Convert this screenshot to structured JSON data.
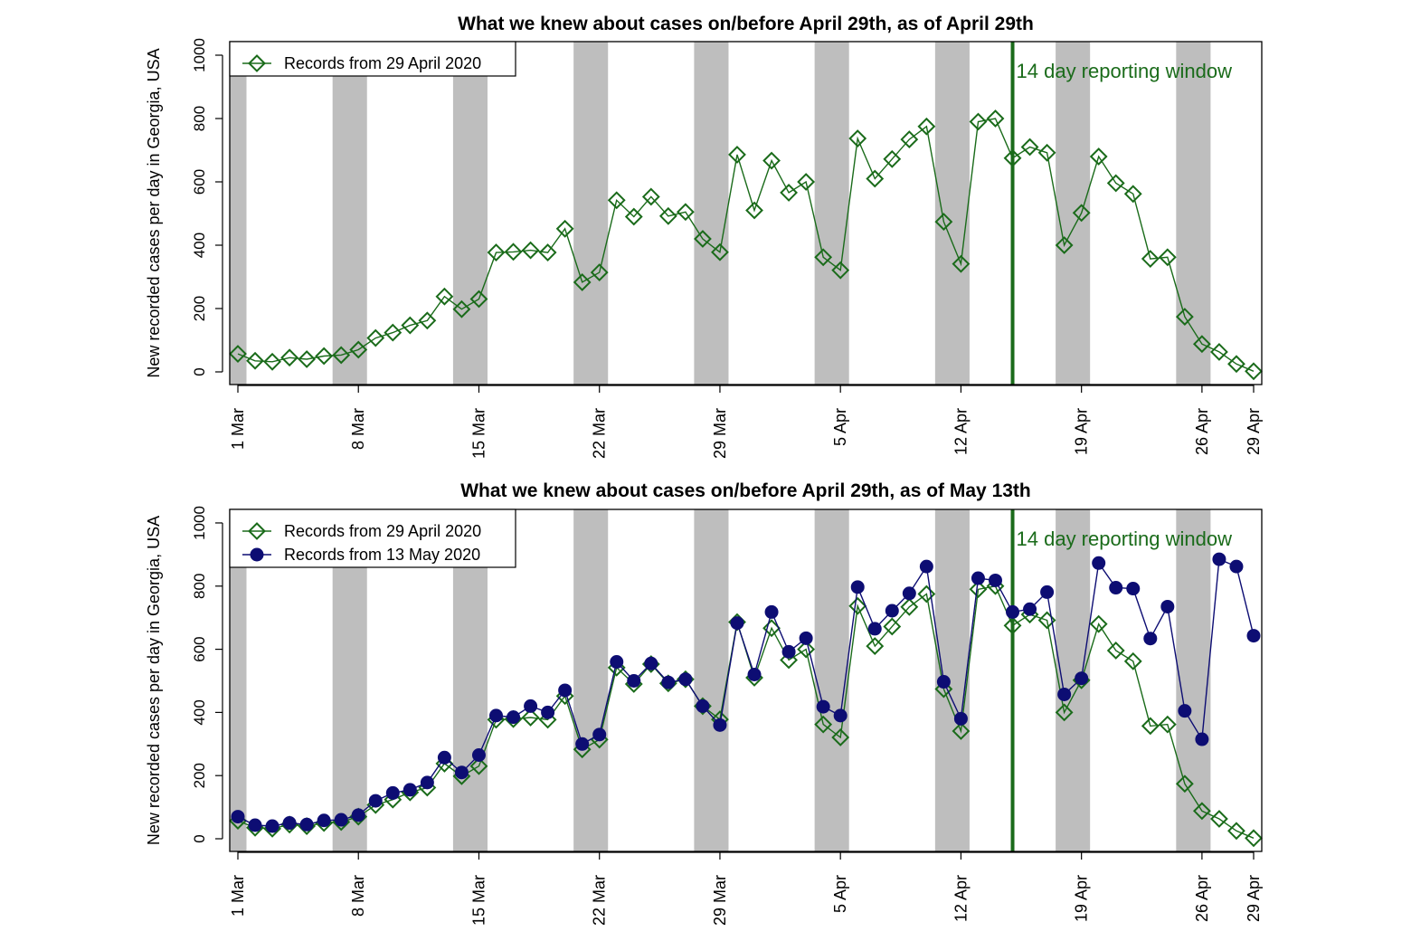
{
  "chart_data": [
    {
      "type": "line",
      "title": "What we knew about cases on/before April 29th, as of April 29th",
      "ylabel": "New recorded cases per day in Georgia, USA",
      "xlabel": "",
      "ylim": [
        0,
        1000
      ],
      "yticks": [
        0,
        200,
        400,
        600,
        800,
        1000
      ],
      "xtick_labels": [
        "1 Mar",
        "8 Mar",
        "15 Mar",
        "22 Mar",
        "29 Mar",
        "5 Apr",
        "12 Apr",
        "19 Apr",
        "26 Apr",
        "29 Apr"
      ],
      "x": [
        "1 Mar",
        "2 Mar",
        "3 Mar",
        "4 Mar",
        "5 Mar",
        "6 Mar",
        "7 Mar",
        "8 Mar",
        "9 Mar",
        "10 Mar",
        "11 Mar",
        "12 Mar",
        "13 Mar",
        "14 Mar",
        "15 Mar",
        "16 Mar",
        "17 Mar",
        "18 Mar",
        "19 Mar",
        "20 Mar",
        "21 Mar",
        "22 Mar",
        "23 Mar",
        "24 Mar",
        "25 Mar",
        "26 Mar",
        "27 Mar",
        "28 Mar",
        "29 Mar",
        "30 Mar",
        "31 Mar",
        "1 Apr",
        "2 Apr",
        "3 Apr",
        "4 Apr",
        "5 Apr",
        "6 Apr",
        "7 Apr",
        "8 Apr",
        "9 Apr",
        "10 Apr",
        "11 Apr",
        "12 Apr",
        "13 Apr",
        "14 Apr",
        "15 Apr",
        "16 Apr",
        "17 Apr",
        "18 Apr",
        "19 Apr",
        "20 Apr",
        "21 Apr",
        "22 Apr",
        "23 Apr",
        "24 Apr",
        "25 Apr",
        "26 Apr",
        "27 Apr",
        "28 Apr",
        "29 Apr"
      ],
      "weekend_shading": [
        [
          "29 Feb",
          "1 Mar"
        ],
        [
          "7 Mar",
          "8 Mar"
        ],
        [
          "14 Mar",
          "15 Mar"
        ],
        [
          "21 Mar",
          "22 Mar"
        ],
        [
          "28 Mar",
          "29 Mar"
        ],
        [
          "4 Apr",
          "5 Apr"
        ],
        [
          "11 Apr",
          "12 Apr"
        ],
        [
          "18 Apr",
          "19 Apr"
        ],
        [
          "25 Apr",
          "26 Apr"
        ]
      ],
      "annotation": {
        "text": "14 day reporting window",
        "date": "15 Apr",
        "color": "#1a6b1a"
      },
      "legend_position": "top-left",
      "series": [
        {
          "name": "Records from 29 April 2020",
          "color": "#1a6b1a",
          "marker": "open-diamond",
          "values": [
            57,
            35,
            32,
            45,
            40,
            50,
            53,
            70,
            107,
            124,
            147,
            162,
            238,
            198,
            230,
            377,
            379,
            384,
            377,
            452,
            283,
            314,
            542,
            490,
            553,
            492,
            505,
            420,
            378,
            686,
            510,
            667,
            566,
            600,
            362,
            321,
            737,
            610,
            672,
            734,
            775,
            474,
            341,
            790,
            800,
            675,
            710,
            692,
            400,
            502,
            680,
            596,
            562,
            357,
            362,
            174,
            88,
            63,
            25,
            2
          ]
        }
      ]
    },
    {
      "type": "line",
      "title": "What we knew about cases on/before April 29th, as of May 13th",
      "ylabel": "New recorded cases per day in Georgia, USA",
      "xlabel": "",
      "ylim": [
        0,
        1000
      ],
      "yticks": [
        0,
        200,
        400,
        600,
        800,
        1000
      ],
      "xtick_labels": [
        "1 Mar",
        "8 Mar",
        "15 Mar",
        "22 Mar",
        "29 Mar",
        "5 Apr",
        "12 Apr",
        "19 Apr",
        "26 Apr",
        "29 Apr"
      ],
      "x": [
        "1 Mar",
        "2 Mar",
        "3 Mar",
        "4 Mar",
        "5 Mar",
        "6 Mar",
        "7 Mar",
        "8 Mar",
        "9 Mar",
        "10 Mar",
        "11 Mar",
        "12 Mar",
        "13 Mar",
        "14 Mar",
        "15 Mar",
        "16 Mar",
        "17 Mar",
        "18 Mar",
        "19 Mar",
        "20 Mar",
        "21 Mar",
        "22 Mar",
        "23 Mar",
        "24 Mar",
        "25 Mar",
        "26 Mar",
        "27 Mar",
        "28 Mar",
        "29 Mar",
        "30 Mar",
        "31 Mar",
        "1 Apr",
        "2 Apr",
        "3 Apr",
        "4 Apr",
        "5 Apr",
        "6 Apr",
        "7 Apr",
        "8 Apr",
        "9 Apr",
        "10 Apr",
        "11 Apr",
        "12 Apr",
        "13 Apr",
        "14 Apr",
        "15 Apr",
        "16 Apr",
        "17 Apr",
        "18 Apr",
        "19 Apr",
        "20 Apr",
        "21 Apr",
        "22 Apr",
        "23 Apr",
        "24 Apr",
        "25 Apr",
        "26 Apr",
        "27 Apr",
        "28 Apr",
        "29 Apr"
      ],
      "weekend_shading": [
        [
          "29 Feb",
          "1 Mar"
        ],
        [
          "7 Mar",
          "8 Mar"
        ],
        [
          "14 Mar",
          "15 Mar"
        ],
        [
          "21 Mar",
          "22 Mar"
        ],
        [
          "28 Mar",
          "29 Mar"
        ],
        [
          "4 Apr",
          "5 Apr"
        ],
        [
          "11 Apr",
          "12 Apr"
        ],
        [
          "18 Apr",
          "19 Apr"
        ],
        [
          "25 Apr",
          "26 Apr"
        ]
      ],
      "annotation": {
        "text": "14 day reporting window",
        "date": "15 Apr",
        "color": "#1a6b1a"
      },
      "legend_position": "top-left",
      "series": [
        {
          "name": "Records from 29 April 2020",
          "color": "#1a6b1a",
          "marker": "open-diamond",
          "values": [
            57,
            35,
            32,
            45,
            40,
            50,
            53,
            70,
            107,
            124,
            147,
            162,
            238,
            198,
            230,
            377,
            379,
            384,
            377,
            452,
            283,
            314,
            542,
            490,
            553,
            492,
            505,
            420,
            378,
            686,
            510,
            667,
            566,
            600,
            362,
            321,
            737,
            610,
            672,
            734,
            775,
            474,
            341,
            790,
            800,
            675,
            710,
            692,
            400,
            502,
            680,
            596,
            562,
            357,
            362,
            174,
            88,
            63,
            25,
            2
          ]
        },
        {
          "name": "Records from 13 May 2020",
          "color": "#0d0d73",
          "marker": "filled-circle",
          "values": [
            70,
            43,
            40,
            50,
            45,
            58,
            60,
            75,
            120,
            145,
            155,
            178,
            257,
            210,
            265,
            390,
            385,
            420,
            400,
            470,
            300,
            330,
            560,
            500,
            555,
            495,
            505,
            420,
            360,
            683,
            520,
            718,
            592,
            635,
            418,
            390,
            797,
            665,
            722,
            777,
            862,
            497,
            380,
            825,
            818,
            718,
            727,
            781,
            457,
            508,
            873,
            795,
            792,
            634,
            735,
            405,
            315,
            885,
            862,
            643
          ]
        }
      ]
    }
  ]
}
